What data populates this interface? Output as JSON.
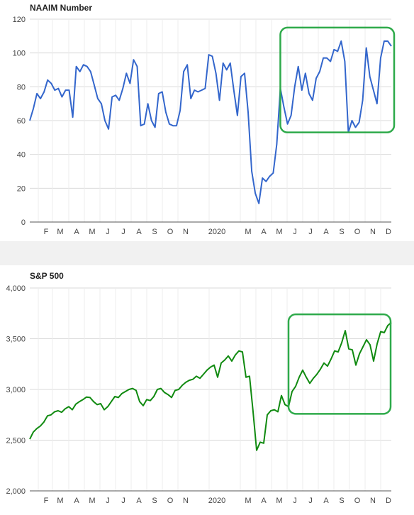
{
  "chart_data": [
    {
      "type": "line",
      "title": "NAAIM Number",
      "xlabel": "",
      "ylabel": "",
      "ylim": [
        0,
        120
      ],
      "y_ticks": [
        "0",
        "20",
        "40",
        "60",
        "80",
        "100",
        "120"
      ],
      "x_ticks": [
        "F",
        "M",
        "A",
        "M",
        "J",
        "J",
        "A",
        "S",
        "O",
        "N",
        "2020",
        "M",
        "A",
        "M",
        "J",
        "J",
        "A",
        "S",
        "O",
        "N",
        "D"
      ],
      "grid": true,
      "color": "#3366cc",
      "highlight_color": "#2eaa4a",
      "highlight_range": {
        "x": [
          70,
          101
        ],
        "y": [
          53,
          115
        ]
      },
      "series": [
        {
          "values": [
            60,
            67,
            76,
            73,
            77,
            84,
            82,
            78,
            79,
            74,
            78,
            78,
            62,
            92,
            89,
            93,
            92,
            89,
            81,
            73,
            70,
            60,
            55,
            74,
            75,
            72,
            79,
            88,
            82,
            96,
            92,
            57,
            58,
            70,
            60,
            56,
            76,
            77,
            65,
            58,
            57,
            57,
            66,
            89,
            93,
            73,
            78,
            77,
            78,
            79,
            99,
            98,
            88,
            72,
            94,
            90,
            94,
            78,
            63,
            86,
            88,
            65,
            30,
            17,
            11,
            26,
            24,
            27,
            29,
            46,
            79,
            68,
            58,
            63,
            80,
            92,
            78,
            88,
            76,
            72,
            85,
            89,
            97,
            97,
            95,
            102,
            101,
            107,
            95,
            53,
            60,
            56,
            59,
            72,
            103,
            86,
            78,
            70,
            97,
            107,
            107,
            104
          ]
        }
      ]
    },
    {
      "type": "line",
      "title": "S&P 500",
      "xlabel": "",
      "ylabel": "",
      "ylim": [
        2000,
        4000
      ],
      "y_ticks": [
        "2,000",
        "2,500",
        "3,000",
        "3,500",
        "4,000"
      ],
      "x_ticks": [
        "F",
        "M",
        "A",
        "M",
        "J",
        "J",
        "A",
        "S",
        "O",
        "N",
        "2020",
        "M",
        "A",
        "M",
        "J",
        "J",
        "A",
        "S",
        "O",
        "N",
        "D"
      ],
      "grid": true,
      "color": "#108a10",
      "highlight_color": "#2eaa4a",
      "highlight_range": {
        "x": [
          73,
          101
        ],
        "y": [
          2760,
          3740
        ]
      },
      "series": [
        {
          "values": [
            2510,
            2580,
            2615,
            2640,
            2680,
            2740,
            2750,
            2780,
            2790,
            2775,
            2810,
            2830,
            2800,
            2855,
            2880,
            2900,
            2925,
            2920,
            2880,
            2850,
            2860,
            2800,
            2830,
            2880,
            2930,
            2920,
            2960,
            2980,
            3000,
            3010,
            2990,
            2880,
            2840,
            2900,
            2890,
            2930,
            3000,
            3010,
            2970,
            2950,
            2920,
            2990,
            3000,
            3040,
            3070,
            3090,
            3100,
            3130,
            3110,
            3150,
            3190,
            3220,
            3240,
            3120,
            3260,
            3290,
            3330,
            3280,
            3340,
            3380,
            3370,
            3120,
            3130,
            2780,
            2400,
            2480,
            2470,
            2750,
            2790,
            2800,
            2780,
            2940,
            2850,
            2830,
            2980,
            3030,
            3120,
            3190,
            3120,
            3060,
            3110,
            3150,
            3200,
            3260,
            3230,
            3300,
            3380,
            3370,
            3460,
            3580,
            3400,
            3390,
            3240,
            3350,
            3420,
            3490,
            3440,
            3280,
            3450,
            3570,
            3560,
            3630,
            3660
          ]
        }
      ]
    }
  ]
}
